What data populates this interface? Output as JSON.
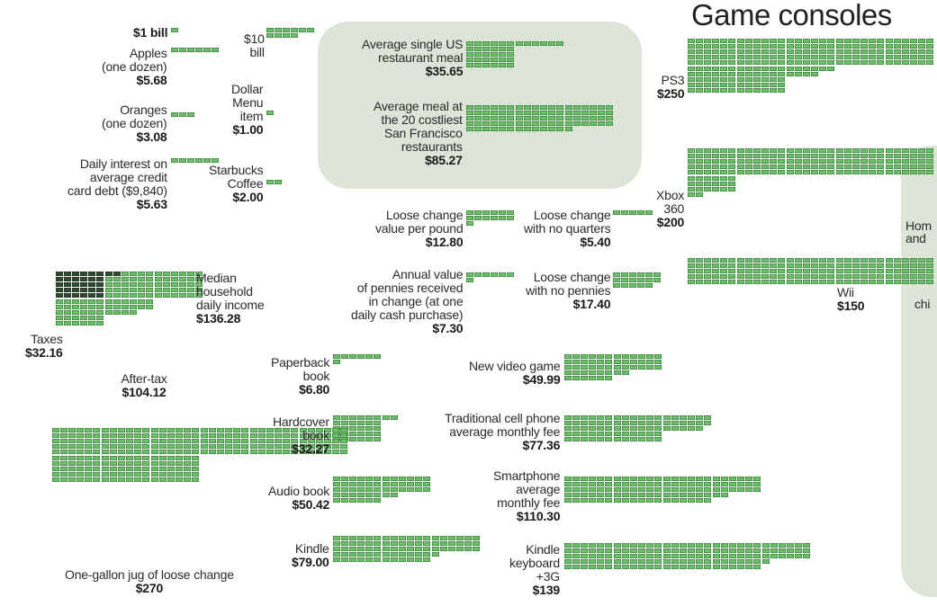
{
  "panels": {
    "consoles_title": "Game consoles"
  },
  "chart_data": {
    "type": "pictogram",
    "unit": "each green block = $1",
    "items": [
      {
        "id": "one-bill",
        "lines": [],
        "price": "$1 bill",
        "value": 1
      },
      {
        "id": "ten-bill",
        "lines": [
          "$10",
          "bill"
        ],
        "price": "",
        "value": 10
      },
      {
        "id": "apples",
        "lines": [
          "Apples",
          "(one dozen)"
        ],
        "price": "$5.68",
        "value": 5.68
      },
      {
        "id": "dollar-menu",
        "lines": [
          "Dollar",
          "Menu",
          "item"
        ],
        "price": "$1.00",
        "value": 1.0
      },
      {
        "id": "oranges",
        "lines": [
          "Oranges",
          "(one dozen)"
        ],
        "price": "$3.08",
        "value": 3.08
      },
      {
        "id": "credit-interest",
        "lines": [
          "Daily interest on",
          "average credit",
          "card debt ($9,840)"
        ],
        "price": "$5.63",
        "value": 5.63
      },
      {
        "id": "starbucks",
        "lines": [
          "Starbucks",
          "Coffee"
        ],
        "price": "$2.00",
        "value": 2.0
      },
      {
        "id": "us-meal",
        "lines": [
          "Average single US",
          "restaurant meal"
        ],
        "price": "$35.65",
        "value": 35.65
      },
      {
        "id": "sf-meal",
        "lines": [
          "Average meal at",
          "the 20 costliest",
          "San Francisco",
          "restaurants"
        ],
        "price": "$85.27",
        "value": 85.27
      },
      {
        "id": "change-pound",
        "lines": [
          "Loose change",
          "value per pound"
        ],
        "price": "$12.80",
        "value": 12.8
      },
      {
        "id": "change-no-quarters",
        "lines": [
          "Loose change",
          "with no quarters"
        ],
        "price": "$5.40",
        "value": 5.4
      },
      {
        "id": "pennies",
        "lines": [
          "Annual value",
          "of pennies received",
          "in change (at one",
          "daily cash purchase)"
        ],
        "price": "$7.30",
        "value": 7.3
      },
      {
        "id": "change-no-pennies",
        "lines": [
          "Loose change",
          "with no pennies"
        ],
        "price": "$17.40",
        "value": 17.4
      },
      {
        "id": "median-income",
        "lines": [
          "Median",
          "household",
          "daily income"
        ],
        "price": "$136.28",
        "value": 136.28
      },
      {
        "id": "taxes",
        "lines": [
          "Taxes"
        ],
        "price": "$32.16",
        "value": 32.16
      },
      {
        "id": "after-tax",
        "lines": [
          "After-tax"
        ],
        "price": "$104.12",
        "value": 104.12
      },
      {
        "id": "paperback",
        "lines": [
          "Paperback",
          "book"
        ],
        "price": "$6.80",
        "value": 6.8
      },
      {
        "id": "video-game",
        "lines": [
          "New video game"
        ],
        "price": "$49.99",
        "value": 49.99
      },
      {
        "id": "hardcover",
        "lines": [
          "Hardcover",
          "book"
        ],
        "price": "$32.27",
        "value": 32.27
      },
      {
        "id": "cell-fee",
        "lines": [
          "Traditional cell phone",
          "average monthly fee"
        ],
        "price": "$77.36",
        "value": 77.36
      },
      {
        "id": "audio-book",
        "lines": [
          "Audio book"
        ],
        "price": "$50.42",
        "value": 50.42
      },
      {
        "id": "smartphone-fee",
        "lines": [
          "Smartphone",
          "average",
          "monthly fee"
        ],
        "price": "$110.30",
        "value": 110.3
      },
      {
        "id": "jug",
        "lines": [
          "One-gallon jug of loose change"
        ],
        "price": "$270",
        "value": 270
      },
      {
        "id": "kindle",
        "lines": [
          "Kindle"
        ],
        "price": "$79.00",
        "value": 79.0
      },
      {
        "id": "kindle-3g",
        "lines": [
          "Kindle",
          "keyboard",
          "+3G"
        ],
        "price": "$139",
        "value": 139
      },
      {
        "id": "ps3",
        "lines": [
          "PS3"
        ],
        "price": "$250",
        "value": 250
      },
      {
        "id": "xbox",
        "lines": [
          "Xbox",
          "360"
        ],
        "price": "$200",
        "value": 200
      },
      {
        "id": "wii",
        "lines": [
          "Wii"
        ],
        "price": "$150",
        "value": 150
      }
    ],
    "partial_labels": [
      {
        "id": "hom",
        "text": "Hom"
      },
      {
        "id": "and",
        "text": "and"
      },
      {
        "id": "chi",
        "text": "chi"
      }
    ]
  }
}
